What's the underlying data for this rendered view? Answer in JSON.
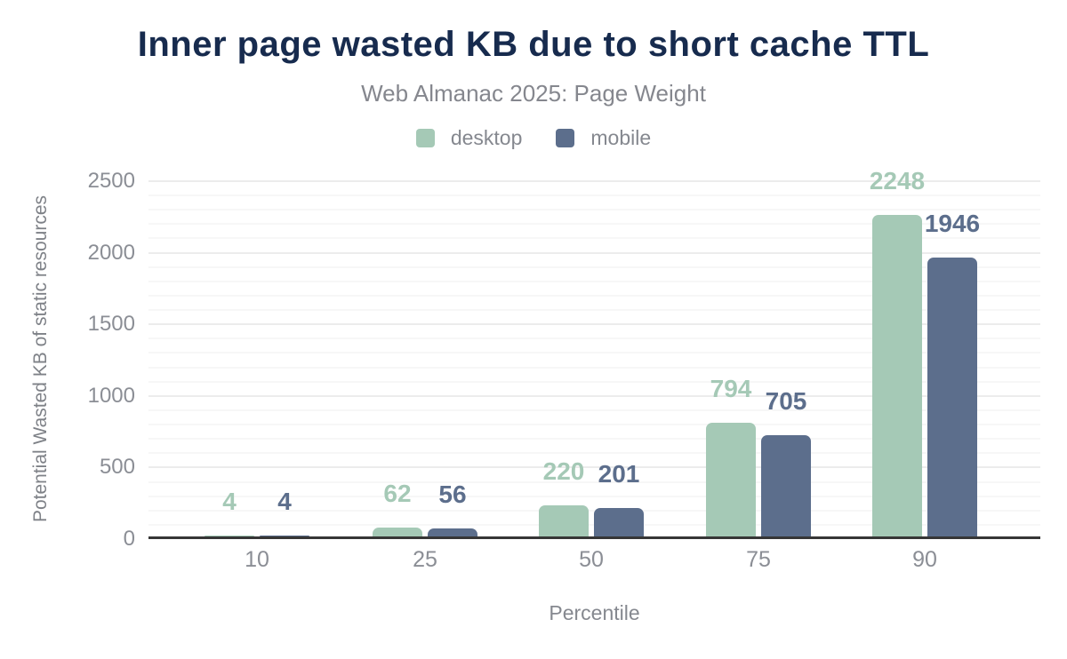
{
  "page": {
    "title": "Inner page wasted KB due to short cache TTL",
    "subtitle": "Web Almanac 2025: Page Weight"
  },
  "legend": {
    "items": [
      {
        "label": "desktop",
        "color": "#a5c9b6"
      },
      {
        "label": "mobile",
        "color": "#5c6e8c"
      }
    ]
  },
  "chart_data": {
    "type": "bar",
    "title": "Inner page wasted KB due to short cache TTL",
    "subtitle": "Web Almanac 2025: Page Weight",
    "categories": [
      "10",
      "25",
      "50",
      "75",
      "90"
    ],
    "series": [
      {
        "name": "desktop",
        "color": "#a5c9b6",
        "values": [
          4,
          62,
          220,
          794,
          2248
        ]
      },
      {
        "name": "mobile",
        "color": "#5c6e8c",
        "values": [
          4,
          56,
          201,
          705,
          1946
        ]
      }
    ],
    "xlabel": "Percentile",
    "ylabel": "Potential Wasted KB of static resources",
    "ylim": [
      0,
      2500
    ],
    "ytick_step": 500,
    "minor_grid_step": 100,
    "grid": true,
    "legend_position": "top",
    "colors": {
      "title": "#172b4e",
      "axis_line": "#363636",
      "tick_text": "#8b8e95",
      "major_grid": "#ececec",
      "minor_grid": "#f7f7f7"
    }
  }
}
